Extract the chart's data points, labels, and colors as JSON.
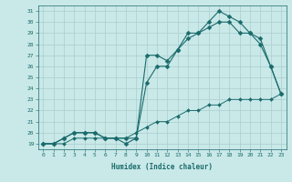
{
  "xlabel": "Humidex (Indice chaleur)",
  "ylabel": "",
  "background_color": "#c9e8e8",
  "grid_color": "#aacece",
  "line_color": "#1a6b6b",
  "xlim": [
    -0.5,
    23.5
  ],
  "ylim": [
    18.5,
    31.5
  ],
  "xticks": [
    0,
    1,
    2,
    3,
    4,
    5,
    6,
    7,
    8,
    9,
    10,
    11,
    12,
    13,
    14,
    15,
    16,
    17,
    18,
    19,
    20,
    21,
    22,
    23
  ],
  "yticks": [
    19,
    20,
    21,
    22,
    23,
    24,
    25,
    26,
    27,
    28,
    29,
    30,
    31
  ],
  "line1_x": [
    0,
    1,
    2,
    3,
    4,
    5,
    6,
    7,
    8,
    9,
    10,
    11,
    12,
    13,
    14,
    15,
    16,
    17,
    18,
    19,
    20,
    21,
    22,
    23
  ],
  "line1_y": [
    19,
    19,
    19.5,
    20,
    20,
    20,
    19.5,
    19.5,
    19.5,
    19.5,
    27,
    27,
    26.5,
    27.5,
    29,
    29,
    30,
    31,
    30.5,
    30,
    29,
    28.5,
    26,
    23.5
  ],
  "line2_x": [
    0,
    1,
    2,
    3,
    4,
    5,
    6,
    7,
    8,
    9,
    10,
    11,
    12,
    13,
    14,
    15,
    16,
    17,
    18,
    19,
    20,
    21,
    22,
    23
  ],
  "line2_y": [
    19,
    19,
    19.5,
    20,
    20,
    20,
    19.5,
    19.5,
    19,
    19.5,
    24.5,
    26,
    26,
    27.5,
    28.5,
    29,
    29.5,
    30,
    30,
    29,
    29,
    28,
    26,
    23.5
  ],
  "line3_x": [
    0,
    1,
    2,
    3,
    4,
    5,
    6,
    7,
    8,
    9,
    10,
    11,
    12,
    13,
    14,
    15,
    16,
    17,
    18,
    19,
    20,
    21,
    22,
    23
  ],
  "line3_y": [
    19,
    19,
    19,
    19.5,
    19.5,
    19.5,
    19.5,
    19.5,
    19.5,
    20,
    20.5,
    21,
    21,
    21.5,
    22,
    22,
    22.5,
    22.5,
    23,
    23,
    23,
    23,
    23,
    23.5
  ],
  "marker_size_large": 2.5,
  "marker_size_small": 2.0,
  "linewidth": 0.8,
  "tick_fontsize": 4.5,
  "xlabel_fontsize": 5.5
}
